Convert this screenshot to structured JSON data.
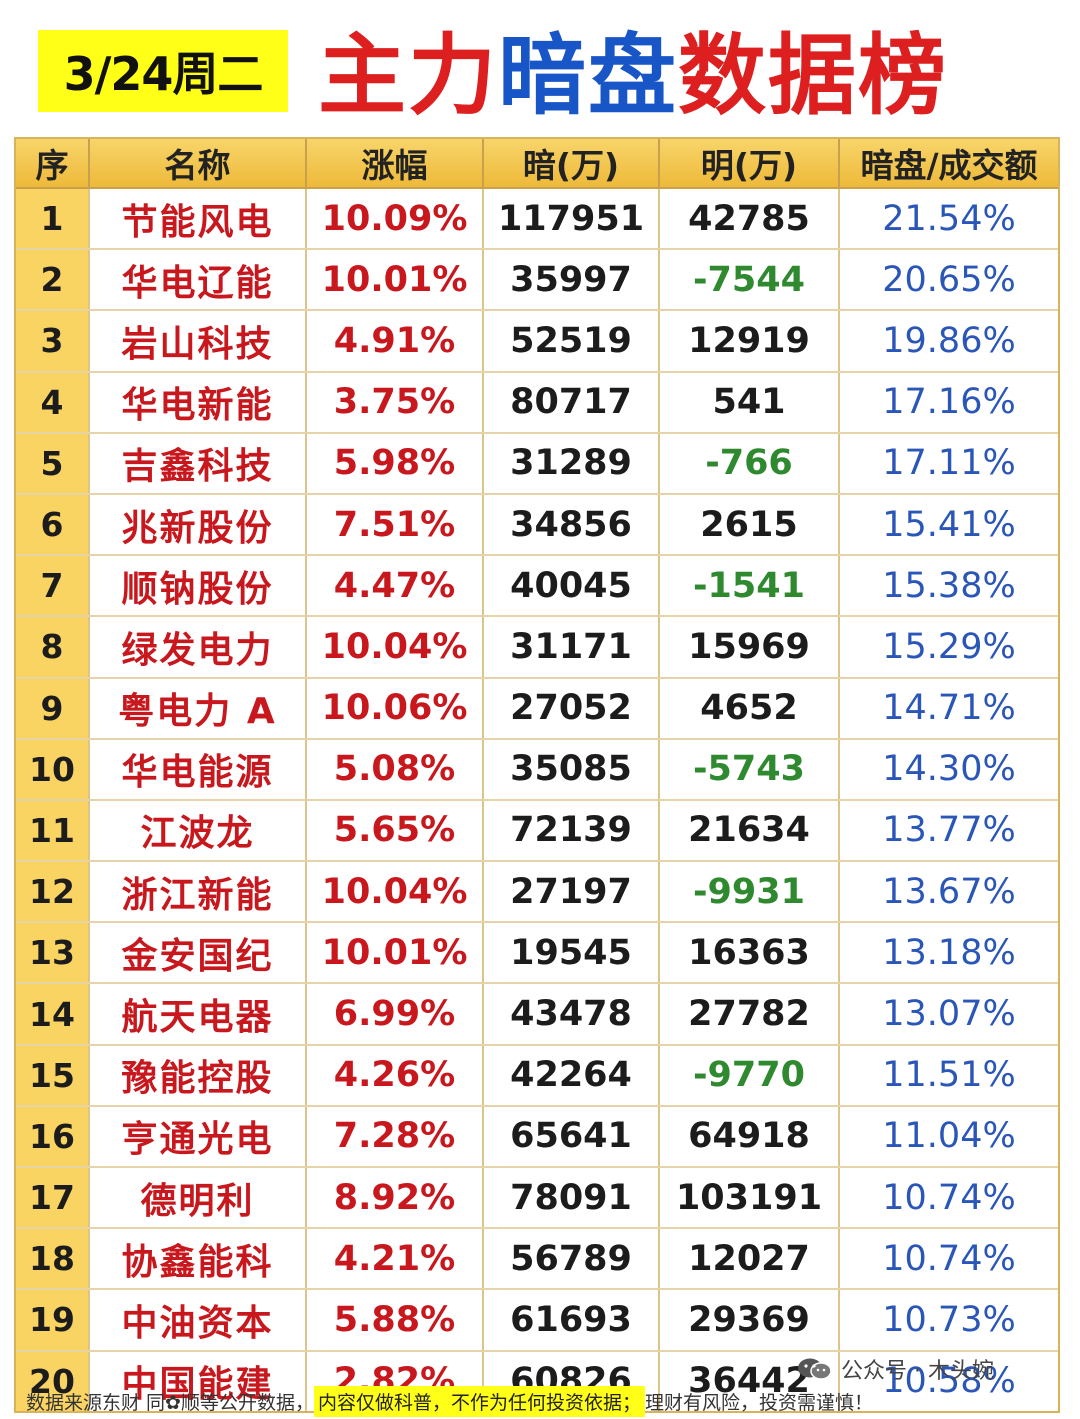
{
  "header": {
    "date": "3/24周二",
    "title_parts": [
      {
        "text": "主力",
        "color": "#dd1f1f"
      },
      {
        "text": "暗盘",
        "color": "#1856c8"
      },
      {
        "text": "数据榜",
        "color": "#dd1f1f"
      }
    ]
  },
  "table": {
    "columns": [
      "序",
      "名称",
      "涨幅",
      "暗(万)",
      "明(万)",
      "暗盘/成交额"
    ],
    "rows": [
      {
        "idx": "1",
        "name": "节能风电",
        "pct": "10.09%",
        "an": "117951",
        "ming": "42785",
        "ratio": "21.54%"
      },
      {
        "idx": "2",
        "name": "华电辽能",
        "pct": "10.01%",
        "an": "35997",
        "ming": "-7544",
        "ratio": "20.65%"
      },
      {
        "idx": "3",
        "name": "岩山科技",
        "pct": "4.91%",
        "an": "52519",
        "ming": "12919",
        "ratio": "19.86%"
      },
      {
        "idx": "4",
        "name": "华电新能",
        "pct": "3.75%",
        "an": "80717",
        "ming": "541",
        "ratio": "17.16%"
      },
      {
        "idx": "5",
        "name": "吉鑫科技",
        "pct": "5.98%",
        "an": "31289",
        "ming": "-766",
        "ratio": "17.11%"
      },
      {
        "idx": "6",
        "name": "兆新股份",
        "pct": "7.51%",
        "an": "34856",
        "ming": "2615",
        "ratio": "15.41%"
      },
      {
        "idx": "7",
        "name": "顺钠股份",
        "pct": "4.47%",
        "an": "40045",
        "ming": "-1541",
        "ratio": "15.38%"
      },
      {
        "idx": "8",
        "name": "绿发电力",
        "pct": "10.04%",
        "an": "31171",
        "ming": "15969",
        "ratio": "15.29%"
      },
      {
        "idx": "9",
        "name": "粤电力 A",
        "pct": "10.06%",
        "an": "27052",
        "ming": "4652",
        "ratio": "14.71%"
      },
      {
        "idx": "10",
        "name": "华电能源",
        "pct": "5.08%",
        "an": "35085",
        "ming": "-5743",
        "ratio": "14.30%"
      },
      {
        "idx": "11",
        "name": "江波龙",
        "pct": "5.65%",
        "an": "72139",
        "ming": "21634",
        "ratio": "13.77%"
      },
      {
        "idx": "12",
        "name": "浙江新能",
        "pct": "10.04%",
        "an": "27197",
        "ming": "-9931",
        "ratio": "13.67%"
      },
      {
        "idx": "13",
        "name": "金安国纪",
        "pct": "10.01%",
        "an": "19545",
        "ming": "16363",
        "ratio": "13.18%"
      },
      {
        "idx": "14",
        "name": "航天电器",
        "pct": "6.99%",
        "an": "43478",
        "ming": "27782",
        "ratio": "13.07%"
      },
      {
        "idx": "15",
        "name": "豫能控股",
        "pct": "4.26%",
        "an": "42264",
        "ming": "-9770",
        "ratio": "11.51%"
      },
      {
        "idx": "16",
        "name": "亨通光电",
        "pct": "7.28%",
        "an": "65641",
        "ming": "64918",
        "ratio": "11.04%"
      },
      {
        "idx": "17",
        "name": "德明利",
        "pct": "8.92%",
        "an": "78091",
        "ming": "103191",
        "ratio": "10.74%"
      },
      {
        "idx": "18",
        "name": "协鑫能科",
        "pct": "4.21%",
        "an": "56789",
        "ming": "12027",
        "ratio": "10.74%"
      },
      {
        "idx": "19",
        "name": "中油资本",
        "pct": "5.88%",
        "an": "61693",
        "ming": "29369",
        "ratio": "10.73%"
      },
      {
        "idx": "20",
        "name": "中国能建",
        "pct": "2.82%",
        "an": "60826",
        "ming": "36442",
        "ratio": "10.58%"
      }
    ]
  },
  "footer": {
    "source": "数据来源东财 同✿顺等公开数据，",
    "highlight": "内容仅做科普，不作为任何投资依据；",
    "risk": "理财有风险，投资需谨慎！"
  },
  "watermark": {
    "text": "公众号 · 木头婉",
    "icon": "wechat-icon"
  }
}
